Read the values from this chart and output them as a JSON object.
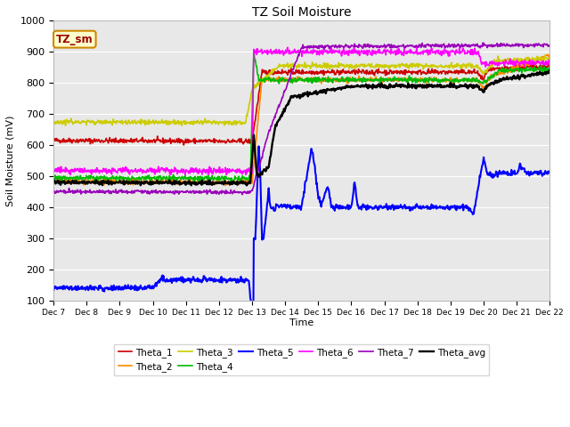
{
  "title": "TZ Soil Moisture",
  "ylabel": "Soil Moisture (mV)",
  "xlabel": "Time",
  "ylim": [
    100,
    1000
  ],
  "yticks": [
    100,
    200,
    300,
    400,
    500,
    600,
    700,
    800,
    900,
    1000
  ],
  "xtick_labels": [
    "Dec 7",
    "Dec 8",
    "Dec 9",
    "Dec 10",
    "Dec 11",
    "Dec 12",
    "Dec 13",
    "Dec 14",
    "Dec 15",
    "Dec 16",
    "Dec 17",
    "Dec 18",
    "Dec 19",
    "Dec 20",
    "Dec 21",
    "Dec 22"
  ],
  "fig_bg": "#ffffff",
  "plot_bg": "#e8e8e8",
  "legend_box_facecolor": "#ffffcc",
  "legend_box_edgecolor": "#cc8800",
  "series_colors": {
    "Theta_1": "#cc0000",
    "Theta_2": "#ff8800",
    "Theta_3": "#cccc00",
    "Theta_4": "#00bb00",
    "Theta_5": "#0000ff",
    "Theta_6": "#ff00ff",
    "Theta_7": "#9900bb",
    "Theta_avg": "#000000"
  },
  "linewidth": 1.2
}
